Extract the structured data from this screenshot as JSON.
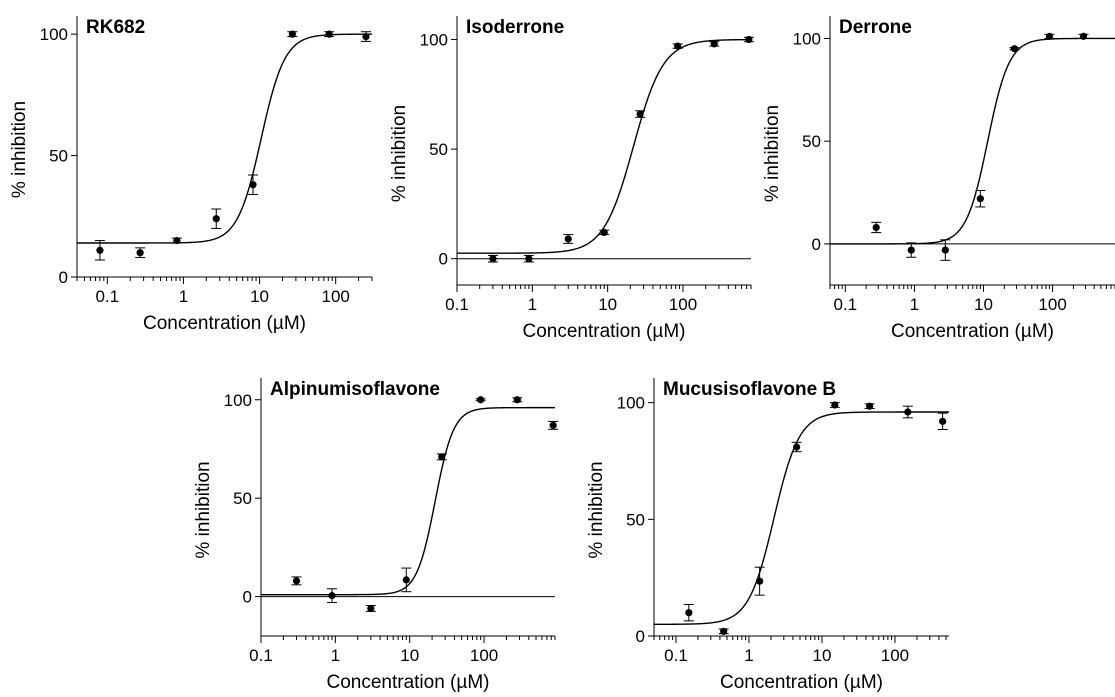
{
  "figure": {
    "panels": [
      {
        "title": "RK682",
        "xlabel": "Concentration (µM)",
        "ylabel": "% inhibition"
      },
      {
        "title": "Isoderrone",
        "xlabel": "Concentration (µM)",
        "ylabel": "% inhibition"
      },
      {
        "title": "Derrone",
        "xlabel": "Concentration (µM)",
        "ylabel": "% inhibition"
      },
      {
        "title": "Alpinumisoflavone",
        "xlabel": "Concentration (µM)",
        "ylabel": "% inhibition"
      },
      {
        "title": "Mucusisoflavone B",
        "xlabel": "Concentration (µM)",
        "ylabel": "% inhibition"
      }
    ]
  },
  "chart_data": [
    {
      "type": "scatter",
      "title": "RK682",
      "xlabel": "Concentration (µM)",
      "ylabel": "% inhibition",
      "x_scale": "log",
      "xlim": [
        0.04,
        300
      ],
      "ylim": [
        0,
        105
      ],
      "xticks": [
        0.1,
        1,
        10,
        100
      ],
      "xtick_labels": [
        "0.1",
        "1",
        "10",
        "100"
      ],
      "yticks": [
        0,
        50,
        100
      ],
      "ytick_labels": [
        "0",
        "50",
        "100"
      ],
      "zero_line": false,
      "points": [
        {
          "x": 0.08,
          "y": 11,
          "err": 4
        },
        {
          "x": 0.27,
          "y": 10,
          "err": 2
        },
        {
          "x": 0.82,
          "y": 15,
          "err": 1
        },
        {
          "x": 2.7,
          "y": 24,
          "err": 4
        },
        {
          "x": 8.2,
          "y": 38,
          "err": 4
        },
        {
          "x": 27,
          "y": 100,
          "err": 1
        },
        {
          "x": 82,
          "y": 100,
          "err": 1
        },
        {
          "x": 250,
          "y": 99,
          "err": 2
        }
      ],
      "fit": {
        "bottom": 14,
        "top": 100,
        "ec50": 10.5,
        "hill": 2.8
      }
    },
    {
      "type": "scatter",
      "title": "Isoderrone",
      "xlabel": "Concentration (µM)",
      "ylabel": "% inhibition",
      "x_scale": "log",
      "xlim": [
        0.1,
        800
      ],
      "ylim": [
        -12,
        108
      ],
      "xticks": [
        0.1,
        1,
        10,
        100
      ],
      "xtick_labels": [
        "0.1",
        "1",
        "10",
        "100"
      ],
      "yticks": [
        0,
        50,
        100
      ],
      "ytick_labels": [
        "0",
        "50",
        "100"
      ],
      "zero_line": true,
      "points": [
        {
          "x": 0.3,
          "y": 0,
          "err": 1.5
        },
        {
          "x": 0.9,
          "y": 0,
          "err": 1.5
        },
        {
          "x": 3,
          "y": 9,
          "err": 2
        },
        {
          "x": 9,
          "y": 12,
          "err": 1
        },
        {
          "x": 27,
          "y": 66,
          "err": 1.5
        },
        {
          "x": 85,
          "y": 97,
          "err": 1
        },
        {
          "x": 260,
          "y": 98,
          "err": 1
        },
        {
          "x": 750,
          "y": 100,
          "err": 1
        }
      ],
      "fit": {
        "bottom": 2.5,
        "top": 100,
        "ec50": 22,
        "hill": 2.2
      }
    },
    {
      "type": "scatter",
      "title": "Derrone",
      "xlabel": "Concentration (µM)",
      "ylabel": "% inhibition",
      "x_scale": "log",
      "xlim": [
        0.06,
        800
      ],
      "ylim": [
        -20,
        108
      ],
      "xticks": [
        0.1,
        1,
        10,
        100
      ],
      "xtick_labels": [
        "0.1",
        "1",
        "10",
        "100"
      ],
      "yticks": [
        0,
        50,
        100
      ],
      "ytick_labels": [
        "0",
        "50",
        "100"
      ],
      "zero_line": true,
      "points": [
        {
          "x": 0.28,
          "y": 8,
          "err": 2.5
        },
        {
          "x": 0.9,
          "y": -3,
          "err": 3.5
        },
        {
          "x": 2.8,
          "y": -3,
          "err": 5
        },
        {
          "x": 9,
          "y": 22,
          "err": 4
        },
        {
          "x": 28,
          "y": 95,
          "err": 0.5
        },
        {
          "x": 90,
          "y": 101,
          "err": 1
        },
        {
          "x": 280,
          "y": 101,
          "err": 1
        }
      ],
      "fit": {
        "bottom": 0,
        "top": 100,
        "ec50": 11.5,
        "hill": 2.8
      }
    },
    {
      "type": "scatter",
      "title": "Alpinumisoflavone",
      "xlabel": "Concentration (µM)",
      "ylabel": "% inhibition",
      "x_scale": "log",
      "xlim": [
        0.1,
        900
      ],
      "ylim": [
        -20,
        108
      ],
      "xticks": [
        0.1,
        1,
        10,
        100
      ],
      "xtick_labels": [
        "0.1",
        "1",
        "10",
        "100"
      ],
      "yticks": [
        0,
        50,
        100
      ],
      "ytick_labels": [
        "0",
        "50",
        "100"
      ],
      "zero_line": true,
      "points": [
        {
          "x": 0.3,
          "y": 8,
          "err": 2
        },
        {
          "x": 0.9,
          "y": 0.5,
          "err": 3.5
        },
        {
          "x": 3,
          "y": -6,
          "err": 1.5
        },
        {
          "x": 9,
          "y": 8.5,
          "err": 6
        },
        {
          "x": 27,
          "y": 71,
          "err": 1.5
        },
        {
          "x": 90,
          "y": 100,
          "err": 0.5
        },
        {
          "x": 280,
          "y": 100,
          "err": 1
        },
        {
          "x": 850,
          "y": 87,
          "err": 2
        }
      ],
      "fit": {
        "bottom": 1,
        "top": 96,
        "ec50": 22,
        "hill": 3.5
      }
    },
    {
      "type": "scatter",
      "title": "Mucusisoflavone B",
      "xlabel": "Concentration (µM)",
      "ylabel": "% inhibition",
      "x_scale": "log",
      "xlim": [
        0.05,
        550
      ],
      "ylim": [
        0,
        108
      ],
      "xticks": [
        0.1,
        1,
        10,
        100
      ],
      "xtick_labels": [
        "0.1",
        "1",
        "10",
        "100"
      ],
      "yticks": [
        0,
        50,
        100
      ],
      "ytick_labels": [
        "0",
        "50",
        "100"
      ],
      "zero_line": false,
      "points": [
        {
          "x": 0.15,
          "y": 10,
          "err": 3.5
        },
        {
          "x": 0.45,
          "y": 2,
          "err": 1
        },
        {
          "x": 1.4,
          "y": 23.5,
          "err": 6
        },
        {
          "x": 4.5,
          "y": 81,
          "err": 2
        },
        {
          "x": 15,
          "y": 99,
          "err": 1
        },
        {
          "x": 45,
          "y": 98.5,
          "err": 1
        },
        {
          "x": 150,
          "y": 96,
          "err": 2.5
        },
        {
          "x": 450,
          "y": 92,
          "err": 3.5
        }
      ],
      "fit": {
        "bottom": 5,
        "top": 96,
        "ec50": 2.2,
        "hill": 2.5
      }
    }
  ]
}
